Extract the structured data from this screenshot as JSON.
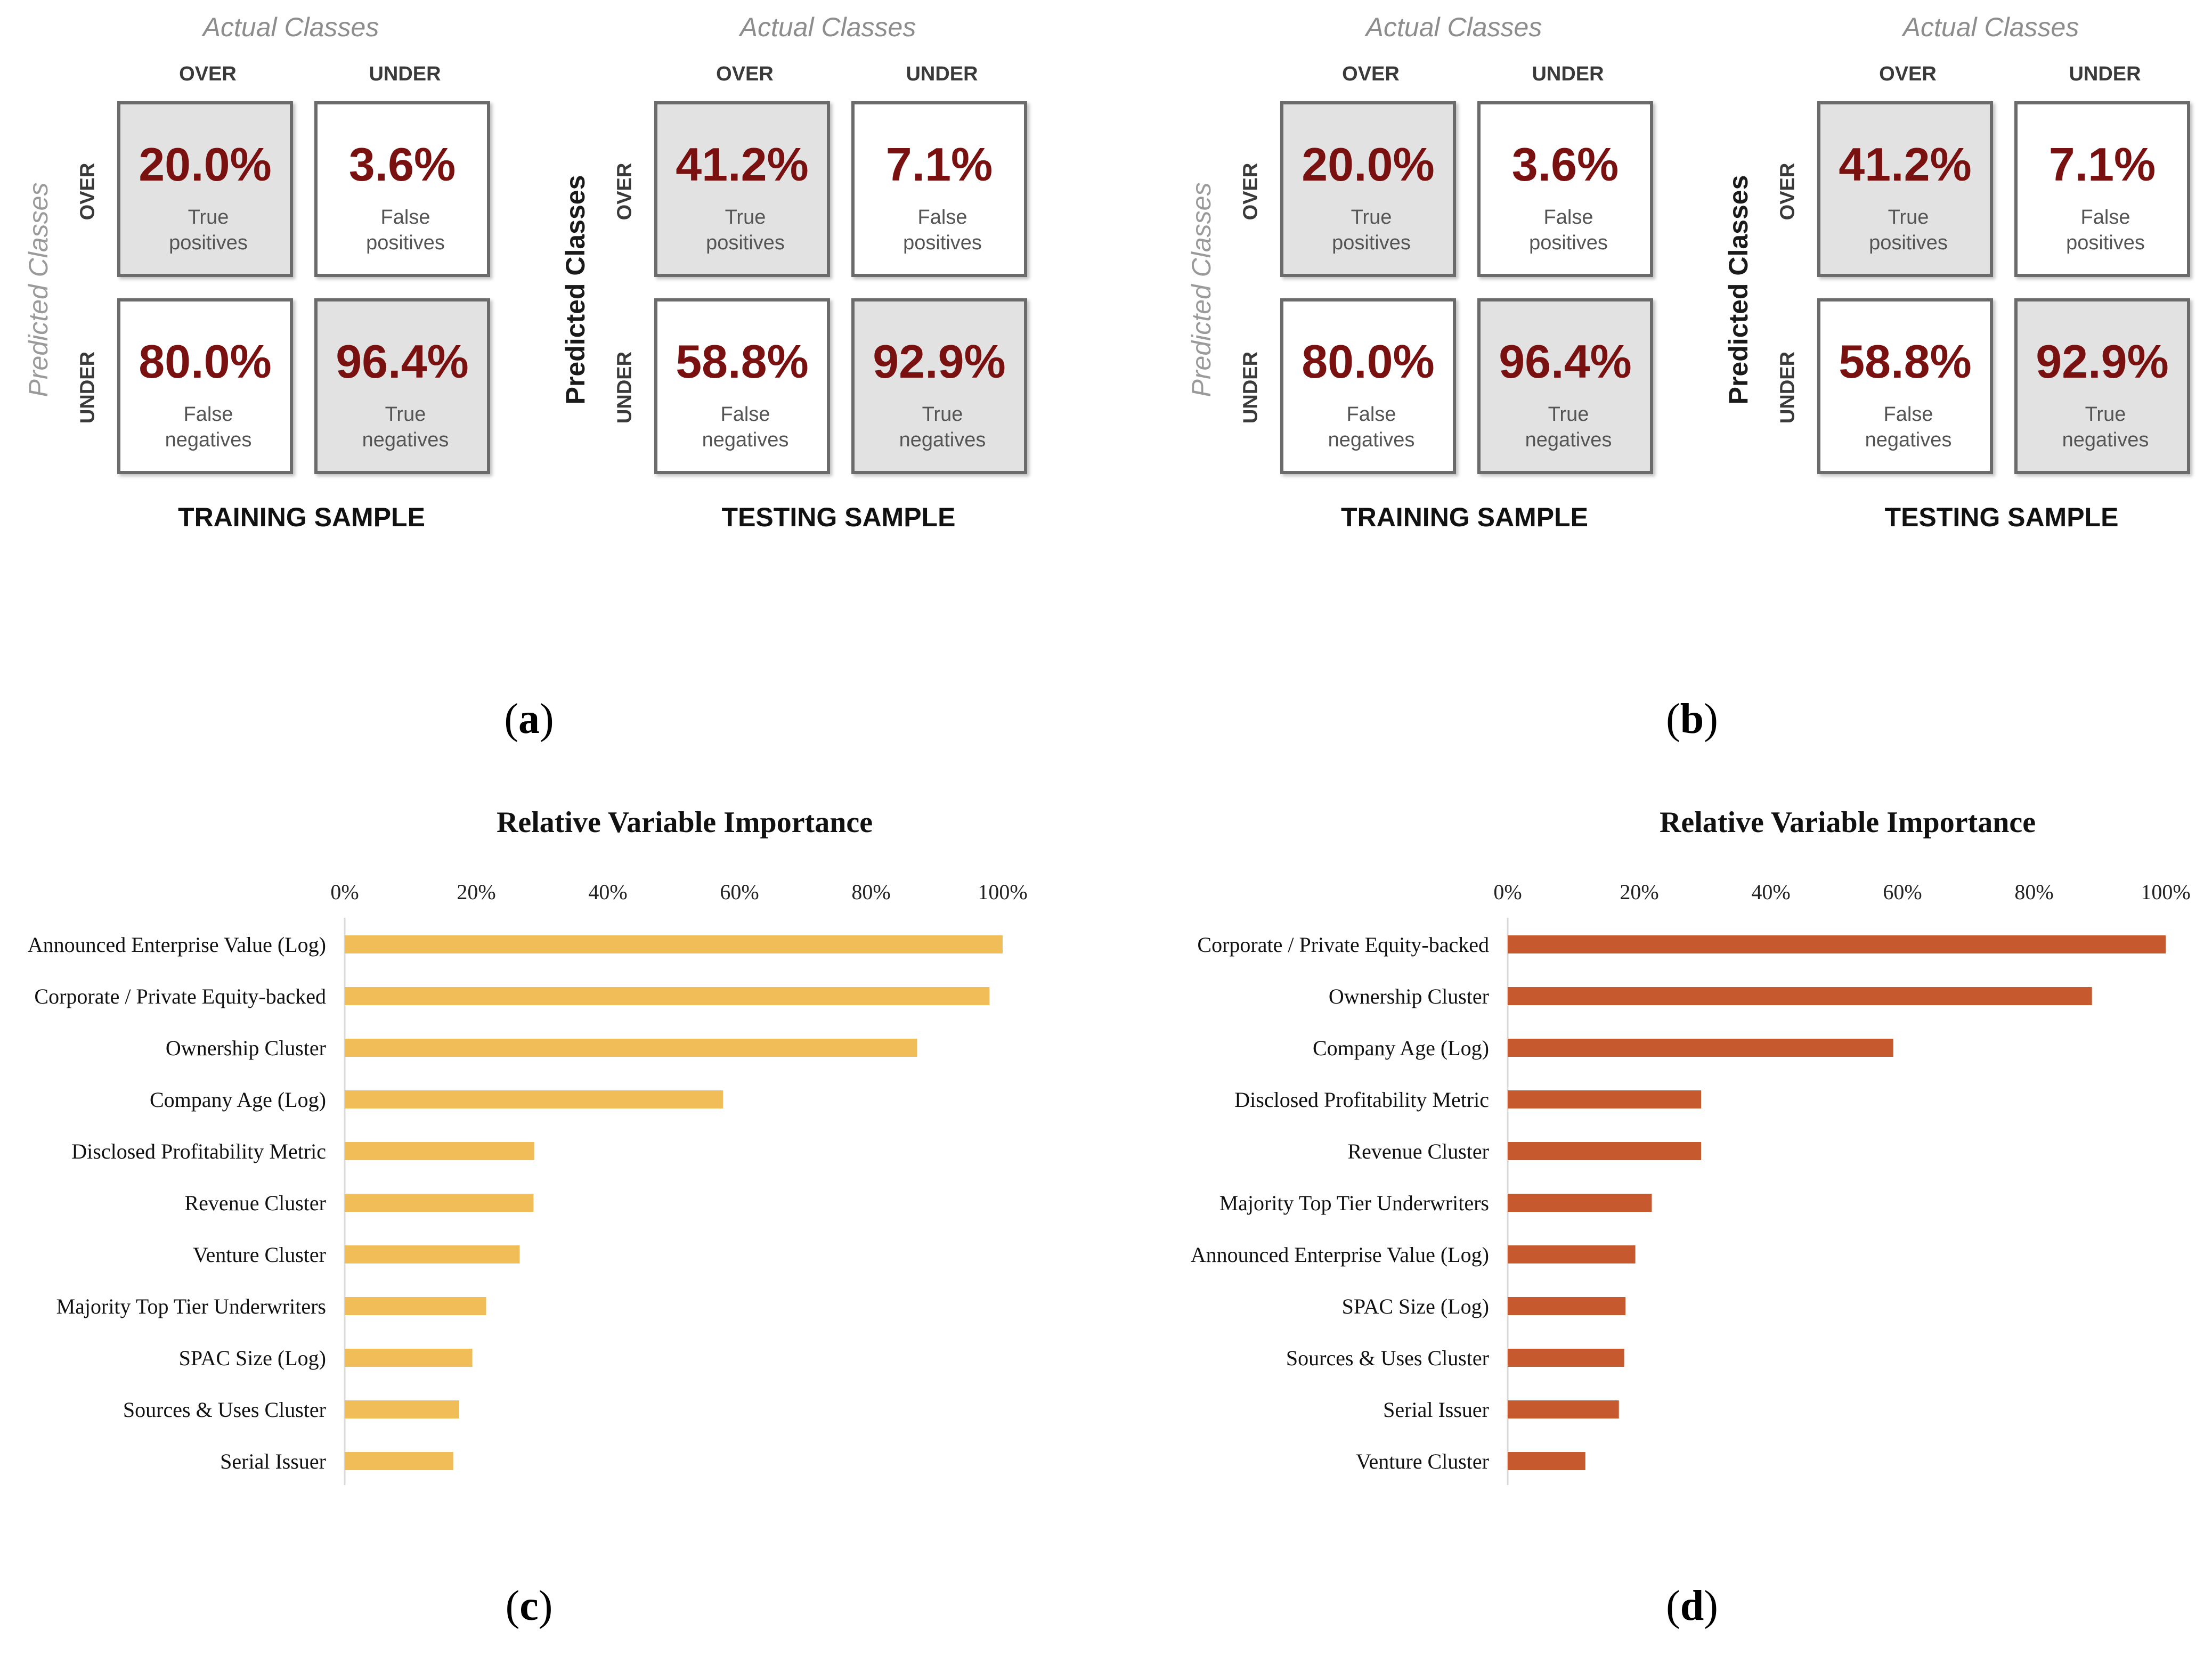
{
  "panels": {
    "a": "a",
    "b": "b",
    "c": "c",
    "d": "d"
  },
  "confusion": {
    "actual_label": "Actual Classes",
    "predicted_label": "Predicted Classes",
    "over": "OVER",
    "under": "UNDER",
    "training_label": "TRAINING SAMPLE",
    "testing_label": "TESTING SAMPLE",
    "training": {
      "tp": {
        "pct": "20.0%",
        "l1": "True",
        "l2": "positives"
      },
      "fp": {
        "pct": "3.6%",
        "l1": "False",
        "l2": "positives"
      },
      "fn": {
        "pct": "80.0%",
        "l1": "False",
        "l2": "negatives"
      },
      "tn": {
        "pct": "96.4%",
        "l1": "True",
        "l2": "negatives"
      }
    },
    "testing": {
      "tp": {
        "pct": "41.2%",
        "l1": "True",
        "l2": "positives"
      },
      "fp": {
        "pct": "7.1%",
        "l1": "False",
        "l2": "positives"
      },
      "fn": {
        "pct": "58.8%",
        "l1": "False",
        "l2": "negatives"
      },
      "tn": {
        "pct": "92.9%",
        "l1": "True",
        "l2": "negatives"
      }
    }
  },
  "colors": {
    "bar_c": "#f0bd58",
    "bar_d": "#c65a2e",
    "pct_text": "#7a1111"
  },
  "chart_data": [
    {
      "type": "bar",
      "orientation": "horizontal",
      "title": "Relative Variable Importance",
      "xlim": [
        0,
        100
      ],
      "ticks": [
        "0%",
        "20%",
        "40%",
        "60%",
        "80%",
        "100%"
      ],
      "categories": [
        "Announced Enterprise Value (Log)",
        "Corporate / Private Equity-backed",
        "Ownership Cluster",
        "Company Age (Log)",
        "Disclosed Profitability Metric",
        "Revenue Cluster",
        "Venture Cluster",
        "Majority Top Tier Underwriters",
        "SPAC Size (Log)",
        "Sources & Uses Cluster",
        "Serial Issuer"
      ],
      "values": [
        100,
        98,
        87,
        57.5,
        28.8,
        28.7,
        26.6,
        21.5,
        19.4,
        17.4,
        16.5
      ]
    },
    {
      "type": "bar",
      "orientation": "horizontal",
      "title": "Relative Variable Importance",
      "xlim": [
        0,
        100
      ],
      "ticks": [
        "0%",
        "20%",
        "40%",
        "60%",
        "80%",
        "100%"
      ],
      "categories": [
        "Corporate / Private Equity-backed",
        "Ownership Cluster",
        "Company Age (Log)",
        "Disclosed Profitability Metric",
        "Revenue Cluster",
        "Majority Top Tier Underwriters",
        "Announced Enterprise Value (Log)",
        "SPAC Size (Log)",
        "Sources & Uses Cluster",
        "Serial Issuer",
        "Venture Cluster"
      ],
      "values": [
        100,
        88.8,
        58.6,
        29.4,
        29.4,
        21.9,
        19.4,
        17.9,
        17.7,
        16.9,
        11.8
      ]
    }
  ]
}
